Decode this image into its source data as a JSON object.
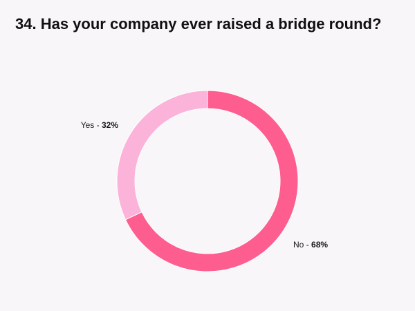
{
  "title": "34. Has your company ever raised a bridge round?",
  "chart_data": {
    "type": "pie",
    "donut": true,
    "title": "34. Has your company ever raised a bridge round?",
    "slices": [
      {
        "label": "No",
        "value": 68,
        "value_text": "68%",
        "color": "#fe5d90"
      },
      {
        "label": "Yes",
        "value": 32,
        "value_text": "32%",
        "color": "#fcb3d9"
      }
    ],
    "legend": "none",
    "background": "#f8f6f9"
  }
}
